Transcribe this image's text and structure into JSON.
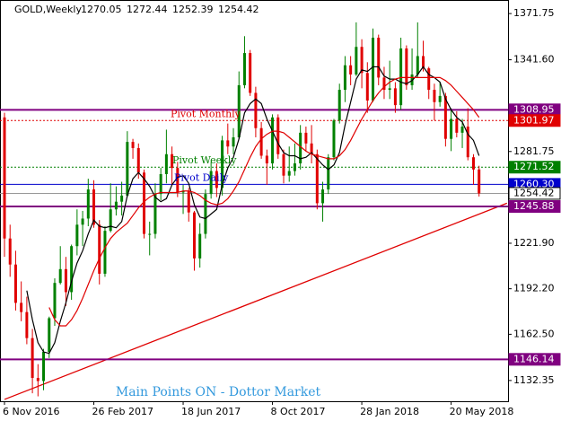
{
  "chart_data": {
    "type": "candlestick",
    "title": "GOLD,Weekly",
    "categories": [
      "6 Nov 2016",
      null,
      null,
      null,
      null,
      null,
      null,
      null,
      null,
      null,
      null,
      null,
      null,
      null,
      null,
      null,
      "26 Feb 2017",
      null,
      null,
      null,
      null,
      null,
      null,
      null,
      null,
      null,
      null,
      null,
      null,
      null,
      null,
      null,
      "18 Jun 2017",
      null,
      null,
      null,
      null,
      null,
      null,
      null,
      null,
      null,
      null,
      null,
      null,
      null,
      null,
      null,
      "8 Oct 2017",
      null,
      null,
      null,
      null,
      null,
      null,
      null,
      null,
      null,
      null,
      null,
      null,
      null,
      null,
      null,
      "28 Jan 2018",
      null,
      null,
      null,
      null,
      null,
      null,
      null,
      null,
      null,
      null,
      null,
      null,
      null,
      null,
      null,
      "20 May 2018",
      null,
      null,
      null,
      null,
      null
    ],
    "open": [
      1304,
      1225,
      1208,
      1183,
      1177,
      1160,
      1134,
      1132,
      1151,
      1173,
      1196,
      1205,
      1190,
      1220,
      1234,
      1238,
      1257,
      1234,
      1202,
      1230,
      1244,
      1249,
      1253,
      1288,
      1284,
      1268,
      1228,
      1228,
      1254,
      1267,
      1280,
      1271,
      1255,
      1256,
      1242,
      1212,
      1228,
      1254,
      1269,
      1258,
      1289,
      1285,
      1291,
      1325,
      1346,
      1320,
      1297,
      1279,
      1274,
      1304,
      1280,
      1266,
      1269,
      1274,
      1294,
      1287,
      1280,
      1248,
      1257,
      1278,
      1302,
      1322,
      1338,
      1332,
      1350,
      1333,
      1315,
      1356,
      1330,
      1322,
      1323,
      1312,
      1349,
      1325,
      1332,
      1344,
      1336,
      1322,
      1314,
      1318,
      1290,
      1303,
      1294,
      1298,
      1278,
      1270.05
    ],
    "high": [
      1307,
      1234,
      1217,
      1197,
      1187,
      1166,
      1143,
      1153,
      1174,
      1199,
      1220,
      1213,
      1221,
      1244,
      1243,
      1264,
      1263,
      1237,
      1233,
      1261,
      1259,
      1262,
      1295,
      1290,
      1287,
      1270,
      1236,
      1261,
      1271,
      1296,
      1285,
      1275,
      1260,
      1258,
      1243,
      1235,
      1257,
      1275,
      1274,
      1292,
      1300,
      1297,
      1334,
      1357,
      1348,
      1324,
      1301,
      1283,
      1306,
      1306,
      1283,
      1285,
      1287,
      1299,
      1298,
      1299,
      1283,
      1262,
      1280,
      1303,
      1326,
      1344,
      1344,
      1366,
      1355,
      1340,
      1362,
      1358,
      1337,
      1341,
      1327,
      1356,
      1351,
      1349,
      1366,
      1354,
      1337,
      1326,
      1327,
      1320,
      1310,
      1308,
      1303,
      1310,
      1280,
      1272.44
    ],
    "low": [
      1213,
      1200,
      1178,
      1171,
      1156,
      1124,
      1122,
      1126,
      1147,
      1168,
      1195,
      1181,
      1185,
      1214,
      1220,
      1233,
      1232,
      1195,
      1200,
      1229,
      1240,
      1240,
      1252,
      1277,
      1264,
      1225,
      1214,
      1225,
      1250,
      1261,
      1260,
      1252,
      1241,
      1236,
      1204,
      1206,
      1225,
      1251,
      1252,
      1253,
      1280,
      1280,
      1290,
      1323,
      1318,
      1291,
      1277,
      1260,
      1270,
      1277,
      1261,
      1262,
      1266,
      1270,
      1282,
      1274,
      1244,
      1236,
      1254,
      1276,
      1300,
      1314,
      1325,
      1331,
      1323,
      1307,
      1314,
      1325,
      1316,
      1316,
      1307,
      1309,
      1322,
      1322,
      1330,
      1334,
      1316,
      1302,
      1311,
      1285,
      1282,
      1291,
      1284,
      1276,
      1260,
      1252.39
    ],
    "close": [
      1225,
      1208,
      1183,
      1177,
      1160,
      1134,
      1132,
      1151,
      1173,
      1196,
      1205,
      1190,
      1220,
      1234,
      1238,
      1257,
      1234,
      1202,
      1230,
      1244,
      1249,
      1253,
      1288,
      1284,
      1268,
      1228,
      1228,
      1254,
      1267,
      1280,
      1271,
      1255,
      1256,
      1242,
      1212,
      1228,
      1254,
      1269,
      1258,
      1289,
      1285,
      1291,
      1325,
      1346,
      1320,
      1297,
      1279,
      1274,
      1304,
      1280,
      1266,
      1269,
      1274,
      1294,
      1287,
      1280,
      1248,
      1257,
      1278,
      1302,
      1322,
      1338,
      1332,
      1350,
      1333,
      1315,
      1356,
      1330,
      1322,
      1323,
      1312,
      1349,
      1325,
      1332,
      1344,
      1336,
      1322,
      1314,
      1318,
      1290,
      1303,
      1294,
      1298,
      1278,
      1270,
      1254.42
    ],
    "up_color": "#008000",
    "down_color": "#e00000",
    "series": [
      {
        "color": "#000000",
        "values": [
          null,
          null,
          null,
          null,
          1191,
          1172,
          1157,
          1151,
          1150,
          1157,
          1171,
          1183,
          1197,
          1209,
          1217,
          1228,
          1237,
          1233,
          1232,
          1233,
          1232,
          1236,
          1253,
          1264,
          1268,
          1264,
          1259,
          1252,
          1249,
          1251,
          1260,
          1265,
          1266,
          1261,
          1247,
          1239,
          1238,
          1241,
          1244,
          1260,
          1271,
          1278,
          1290,
          1307,
          1313,
          1316,
          1313,
          1303,
          1295,
          1287,
          1281,
          1279,
          1279,
          1277,
          1278,
          1281,
          1277,
          1273,
          1270,
          1273,
          1281,
          1299,
          1314,
          1329,
          1335,
          1334,
          1337,
          1337,
          1331,
          1329,
          1329,
          1327,
          1326,
          1328,
          1332,
          1337,
          1332,
          1330,
          1327,
          1316,
          1309,
          1304,
          1301,
          1293,
          1289,
          1279
        ]
      },
      {
        "color": "#e00000",
        "values": [
          null,
          null,
          null,
          null,
          null,
          null,
          null,
          null,
          1180,
          1172,
          1168,
          1168,
          1172,
          1178,
          1186,
          1195,
          1204,
          1212,
          1219,
          1225,
          1229,
          1232,
          1235,
          1240,
          1245,
          1249,
          1252,
          1254,
          1255,
          1255,
          1255,
          1255,
          1256,
          1256,
          1255,
          1253,
          1250,
          1248,
          1247,
          1248,
          1251,
          1256,
          1262,
          1270,
          1278,
          1285,
          1290,
          1293,
          1295,
          1295,
          1294,
          1291,
          1288,
          1285,
          1282,
          1280,
          1279,
          1278,
          1277,
          1277,
          1279,
          1283,
          1289,
          1296,
          1303,
          1309,
          1315,
          1320,
          1324,
          1327,
          1329,
          1330,
          1330,
          1330,
          1330,
          1330,
          1330,
          1330,
          1330,
          1328,
          1325,
          1321,
          1317,
          1313,
          1309,
          1304
        ]
      }
    ],
    "ylim": [
      1118.8,
      1380.6
    ],
    "yticks": [
      1371.75,
      {
        "value": 1341.6,
        "label": "1341.60"
      },
      1281.75,
      {
        "value": 1221.9,
        "label": "1221.90"
      },
      {
        "value": 1192.2,
        "label": "1192.20"
      },
      {
        "value": 1162.5,
        "label": "1162.50"
      },
      1132.35
    ],
    "levels": [
      {
        "value": 1308.95,
        "label": "1308.95",
        "color": "#800080",
        "style": "solid"
      },
      {
        "value": 1301.97,
        "label": "1301.97",
        "color": "#e00000",
        "style": "dotted",
        "annotation": "Pivot Monthly"
      },
      {
        "value": 1271.52,
        "label": "1271.52",
        "color": "#008000",
        "style": "dotted",
        "annotation": "Pivot Weekly"
      },
      {
        "value": 1260.3,
        "label": "1260.30",
        "color": "#0000cc",
        "style": "thin",
        "annotation": "Pivot Daily"
      },
      {
        "value": 1245.88,
        "label": "1245.88",
        "color": "#800080",
        "style": "solid"
      },
      {
        "value": 1146.14,
        "label": "1146.14",
        "color": "#800080",
        "style": "solid"
      }
    ],
    "trendline": {
      "x": [
        0,
        90
      ],
      "y": [
        1120,
        1248
      ],
      "color": "#e00000"
    },
    "watermark": "Main Points ON - Dottor Market"
  }
}
